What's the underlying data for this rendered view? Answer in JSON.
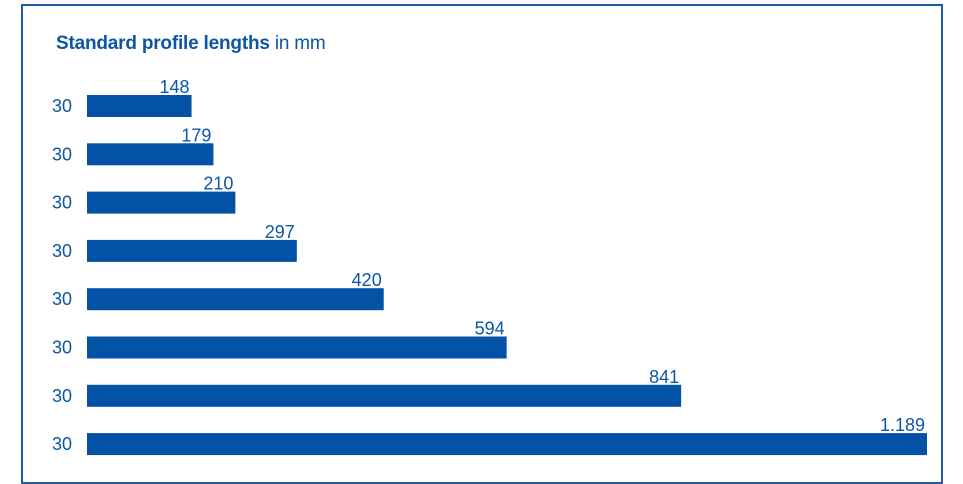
{
  "title": "Standard profile lengths",
  "title_unit": "in mm",
  "colors": {
    "bar": "#0452a6",
    "text": "#0d56a6",
    "border": "#1f5aa6"
  },
  "chart_data": {
    "type": "bar",
    "orientation": "horizontal",
    "title": "Standard profile lengths in mm",
    "categories": [
      "30",
      "30",
      "30",
      "30",
      "30",
      "30",
      "30",
      "30"
    ],
    "values": [
      148,
      179,
      210,
      297,
      420,
      594,
      841,
      1189
    ],
    "value_labels": [
      "148",
      "179",
      "210",
      "297",
      "420",
      "594",
      "841",
      "1.189"
    ],
    "xlim": [
      0,
      1189
    ],
    "grid": false,
    "legend": "none"
  }
}
